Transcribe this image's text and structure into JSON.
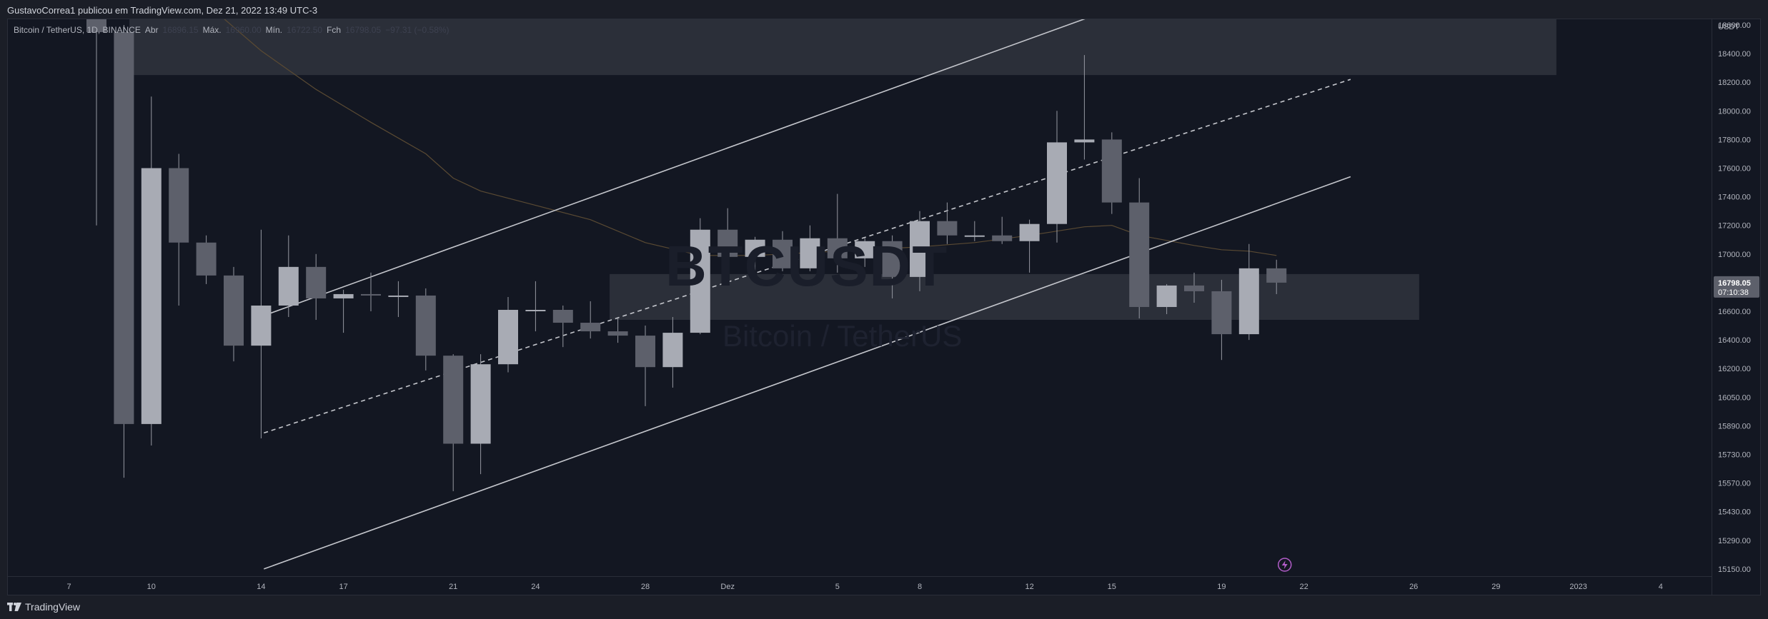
{
  "header": {
    "published_text": "GustavoCorrea1 publicou em TradingView.com, Dez 21, 2022 13:49 UTC-3"
  },
  "legend": {
    "symbol": "Bitcoin / TetherUS, 1D, BINANCE",
    "open_label": "Abr",
    "open_value": "16896.15",
    "high_label": "Máx.",
    "high_value": "16960.00",
    "low_label": "Mín.",
    "low_value": "16722.50",
    "close_label": "Fch",
    "close_value": "16798.05",
    "change_value": "−97.31 (−0.58%)"
  },
  "watermark": {
    "title": "BTCUSDT",
    "subtitle": "Bitcoin / TetherUS"
  },
  "price_axis": {
    "currency": "USDT",
    "current_price": "16798.05",
    "countdown": "07:10:38"
  },
  "footer": {
    "brand": "TradingView"
  },
  "colors": {
    "background": "#131722",
    "up_candle": "#a8abb4",
    "down_candle": "#5d606b",
    "wick": "#9598a1",
    "zone": "#2f323c",
    "channel": "#c4c6cc",
    "ema": "#5a4a33"
  },
  "chart_data": {
    "type": "candlestick",
    "symbol": "Bitcoin / TetherUS",
    "interval": "1D",
    "exchange": "BINANCE",
    "y_ticks": [
      18600,
      18400,
      18200,
      18000,
      17800,
      17600,
      17400,
      17200,
      17000,
      16800,
      16600,
      16400,
      16200,
      16050,
      15890,
      15730,
      15570,
      15430,
      15290,
      15150
    ],
    "x_ticks": [
      {
        "day": -1,
        "label": "7"
      },
      {
        "day": 2,
        "label": "10"
      },
      {
        "day": 6,
        "label": "14"
      },
      {
        "day": 9,
        "label": "17"
      },
      {
        "day": 13,
        "label": "21"
      },
      {
        "day": 16,
        "label": "24"
      },
      {
        "day": 20,
        "label": "28"
      },
      {
        "day": 23,
        "label": "Dez"
      },
      {
        "day": 27,
        "label": "5"
      },
      {
        "day": 30,
        "label": "8"
      },
      {
        "day": 34,
        "label": "12"
      },
      {
        "day": 37,
        "label": "15"
      },
      {
        "day": 41,
        "label": "19"
      },
      {
        "day": 44,
        "label": "22"
      },
      {
        "day": 48,
        "label": "26"
      },
      {
        "day": 51,
        "label": "29"
      },
      {
        "day": 54,
        "label": "2023"
      },
      {
        "day": 57,
        "label": "4"
      }
    ],
    "candles": [
      {
        "date": "2022-11-08",
        "open": 19500,
        "high": 20100,
        "low": 17200,
        "close": 18550
      },
      {
        "date": "2022-11-09",
        "open": 18550,
        "high": 18600,
        "low": 15600,
        "close": 15900
      },
      {
        "date": "2022-11-10",
        "open": 15900,
        "high": 18100,
        "low": 15780,
        "close": 17600
      },
      {
        "date": "2022-11-11",
        "open": 17600,
        "high": 17700,
        "low": 16640,
        "close": 17080
      },
      {
        "date": "2022-11-12",
        "open": 17080,
        "high": 17130,
        "low": 16790,
        "close": 16850
      },
      {
        "date": "2022-11-13",
        "open": 16850,
        "high": 16910,
        "low": 16250,
        "close": 16360
      },
      {
        "date": "2022-11-14",
        "open": 16360,
        "high": 17170,
        "low": 15820,
        "close": 16640
      },
      {
        "date": "2022-11-15",
        "open": 16640,
        "high": 17130,
        "low": 16560,
        "close": 16910
      },
      {
        "date": "2022-11-16",
        "open": 16910,
        "high": 17000,
        "low": 16540,
        "close": 16690
      },
      {
        "date": "2022-11-17",
        "open": 16690,
        "high": 16750,
        "low": 16450,
        "close": 16720
      },
      {
        "date": "2022-11-18",
        "open": 16720,
        "high": 16870,
        "low": 16600,
        "close": 16710
      },
      {
        "date": "2022-11-19",
        "open": 16710,
        "high": 16810,
        "low": 16560,
        "close": 16710
      },
      {
        "date": "2022-11-20",
        "open": 16710,
        "high": 16760,
        "low": 16190,
        "close": 16290
      },
      {
        "date": "2022-11-21",
        "open": 16290,
        "high": 16300,
        "low": 15530,
        "close": 15790
      },
      {
        "date": "2022-11-22",
        "open": 15790,
        "high": 16300,
        "low": 15620,
        "close": 16230
      },
      {
        "date": "2022-11-23",
        "open": 16230,
        "high": 16700,
        "low": 16180,
        "close": 16610
      },
      {
        "date": "2022-11-24",
        "open": 16610,
        "high": 16810,
        "low": 16460,
        "close": 16610
      },
      {
        "date": "2022-11-25",
        "open": 16610,
        "high": 16640,
        "low": 16350,
        "close": 16520
      },
      {
        "date": "2022-11-26",
        "open": 16520,
        "high": 16670,
        "low": 16410,
        "close": 16460
      },
      {
        "date": "2022-11-27",
        "open": 16460,
        "high": 16550,
        "low": 16380,
        "close": 16430
      },
      {
        "date": "2022-11-28",
        "open": 16430,
        "high": 16500,
        "low": 16000,
        "close": 16210
      },
      {
        "date": "2022-11-29",
        "open": 16210,
        "high": 16560,
        "low": 16100,
        "close": 16450
      },
      {
        "date": "2022-11-30",
        "open": 16450,
        "high": 17250,
        "low": 16440,
        "close": 17170
      },
      {
        "date": "2022-12-01",
        "open": 17170,
        "high": 17320,
        "low": 16860,
        "close": 16980
      },
      {
        "date": "2022-12-02",
        "open": 16980,
        "high": 17120,
        "low": 16800,
        "close": 17100
      },
      {
        "date": "2022-12-03",
        "open": 17100,
        "high": 17160,
        "low": 16880,
        "close": 16900
      },
      {
        "date": "2022-12-04",
        "open": 16900,
        "high": 17200,
        "low": 16880,
        "close": 17110
      },
      {
        "date": "2022-12-05",
        "open": 17110,
        "high": 17420,
        "low": 16870,
        "close": 16970
      },
      {
        "date": "2022-12-06",
        "open": 16970,
        "high": 17110,
        "low": 16910,
        "close": 17090
      },
      {
        "date": "2022-12-07",
        "open": 17090,
        "high": 17130,
        "low": 16690,
        "close": 16840
      },
      {
        "date": "2022-12-08",
        "open": 16840,
        "high": 17300,
        "low": 16740,
        "close": 17230
      },
      {
        "date": "2022-12-09",
        "open": 17230,
        "high": 17360,
        "low": 17070,
        "close": 17130
      },
      {
        "date": "2022-12-10",
        "open": 17130,
        "high": 17230,
        "low": 17090,
        "close": 17130
      },
      {
        "date": "2022-12-11",
        "open": 17130,
        "high": 17260,
        "low": 17070,
        "close": 17090
      },
      {
        "date": "2022-12-12",
        "open": 17090,
        "high": 17240,
        "low": 16870,
        "close": 17210
      },
      {
        "date": "2022-12-13",
        "open": 17210,
        "high": 18000,
        "low": 17080,
        "close": 17780
      },
      {
        "date": "2022-12-14",
        "open": 17780,
        "high": 18390,
        "low": 17660,
        "close": 17800
      },
      {
        "date": "2022-12-15",
        "open": 17800,
        "high": 17850,
        "low": 17280,
        "close": 17360
      },
      {
        "date": "2022-12-16",
        "open": 17360,
        "high": 17530,
        "low": 16550,
        "close": 16630
      },
      {
        "date": "2022-12-17",
        "open": 16630,
        "high": 16790,
        "low": 16580,
        "close": 16780
      },
      {
        "date": "2022-12-18",
        "open": 16780,
        "high": 16870,
        "low": 16660,
        "close": 16740
      },
      {
        "date": "2022-12-19",
        "open": 16740,
        "high": 16820,
        "low": 16260,
        "close": 16440
      },
      {
        "date": "2022-12-20",
        "open": 16440,
        "high": 17070,
        "low": 16400,
        "close": 16900
      },
      {
        "date": "2022-12-21",
        "open": 16900,
        "high": 16960,
        "low": 16720,
        "close": 16800
      }
    ],
    "ema": [
      {
        "day": 2,
        "price": 19350
      },
      {
        "day": 4,
        "price": 18750
      },
      {
        "day": 6,
        "price": 18420
      },
      {
        "day": 8,
        "price": 18150
      },
      {
        "day": 10,
        "price": 17920
      },
      {
        "day": 12,
        "price": 17700
      },
      {
        "day": 13,
        "price": 17530
      },
      {
        "day": 14,
        "price": 17440
      },
      {
        "day": 16,
        "price": 17340
      },
      {
        "day": 18,
        "price": 17240
      },
      {
        "day": 20,
        "price": 17080
      },
      {
        "day": 22,
        "price": 16990
      },
      {
        "day": 24,
        "price": 16990
      },
      {
        "day": 26,
        "price": 17010
      },
      {
        "day": 28,
        "price": 17030
      },
      {
        "day": 30,
        "price": 17050
      },
      {
        "day": 32,
        "price": 17080
      },
      {
        "day": 34,
        "price": 17130
      },
      {
        "day": 36,
        "price": 17190
      },
      {
        "day": 37,
        "price": 17200
      },
      {
        "day": 38,
        "price": 17130
      },
      {
        "day": 40,
        "price": 17060
      },
      {
        "day": 41,
        "price": 17030
      },
      {
        "day": 42,
        "price": 17020
      },
      {
        "day": 43,
        "price": 16990
      }
    ],
    "channel": {
      "upper": [
        {
          "day": 6.1,
          "price": 16570
        },
        {
          "day": 45.5,
          "price": 19300
        }
      ],
      "middle": [
        {
          "day": 6.1,
          "price": 15850
        },
        {
          "day": 45.7,
          "price": 18220
        }
      ],
      "lower": [
        {
          "day": 6.1,
          "price": 15150
        },
        {
          "day": 45.7,
          "price": 17540
        }
      ]
    },
    "zones": [
      {
        "from_day": 1.2,
        "to_day": 53.2,
        "top": 18850,
        "bottom": 18250
      },
      {
        "from_day": 18.7,
        "to_day": 48.2,
        "top": 16860,
        "bottom": 16540
      }
    ]
  }
}
